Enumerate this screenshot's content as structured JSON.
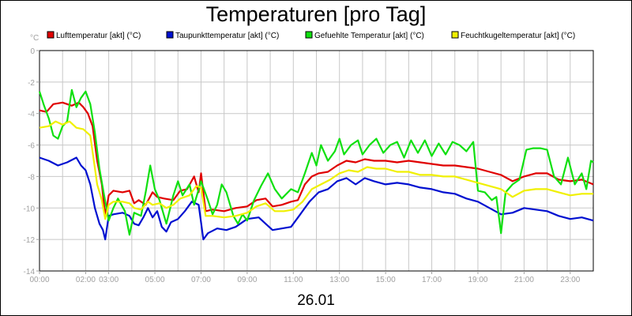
{
  "chart_data": {
    "type": "line",
    "title": "Temperaturen [pro Tag]",
    "xlabel": "26.01",
    "ylabel": "°C",
    "ylim": [
      -14,
      0
    ],
    "xlim": [
      0,
      24
    ],
    "grid": true,
    "legend_position": "top",
    "y_ticks": [
      "0",
      "-2",
      "-4",
      "-6",
      "-8",
      "-10",
      "-12",
      "-14"
    ],
    "x_ticks": [
      {
        "t": 0,
        "label": "00:00"
      },
      {
        "t": 2,
        "label": "02:00"
      },
      {
        "t": 3,
        "label": "03:00"
      },
      {
        "t": 5,
        "label": "05:00"
      },
      {
        "t": 7,
        "label": "07:00"
      },
      {
        "t": 9,
        "label": "09:00"
      },
      {
        "t": 11,
        "label": "11:00"
      },
      {
        "t": 13,
        "label": "13:00"
      },
      {
        "t": 15,
        "label": "15:00"
      },
      {
        "t": 17,
        "label": "17:00"
      },
      {
        "t": 19,
        "label": "19:00"
      },
      {
        "t": 21,
        "label": "21:00"
      },
      {
        "t": 23,
        "label": "23:00"
      }
    ],
    "series": [
      {
        "name": "Lufttemperatur [akt] (°C)",
        "color": "#e00000",
        "points": [
          [
            0,
            -3.8
          ],
          [
            0.3,
            -3.9
          ],
          [
            0.6,
            -3.4
          ],
          [
            1.0,
            -3.3
          ],
          [
            1.4,
            -3.5
          ],
          [
            1.7,
            -3.3
          ],
          [
            1.9,
            -3.6
          ],
          [
            2.1,
            -4.0
          ],
          [
            2.3,
            -4.8
          ],
          [
            2.5,
            -7.0
          ],
          [
            2.7,
            -8.5
          ],
          [
            2.85,
            -10.5
          ],
          [
            3.0,
            -9.2
          ],
          [
            3.2,
            -8.9
          ],
          [
            3.6,
            -9.0
          ],
          [
            3.9,
            -8.9
          ],
          [
            4.1,
            -9.7
          ],
          [
            4.3,
            -9.5
          ],
          [
            4.6,
            -9.8
          ],
          [
            4.9,
            -9.0
          ],
          [
            5.1,
            -9.3
          ],
          [
            5.4,
            -9.4
          ],
          [
            5.8,
            -9.5
          ],
          [
            6.1,
            -8.9
          ],
          [
            6.4,
            -8.8
          ],
          [
            6.7,
            -8.0
          ],
          [
            6.9,
            -9.0
          ],
          [
            7.0,
            -7.8
          ],
          [
            7.2,
            -10.2
          ],
          [
            7.5,
            -10.1
          ],
          [
            8.0,
            -10.2
          ],
          [
            8.5,
            -10.0
          ],
          [
            9.0,
            -9.9
          ],
          [
            9.4,
            -9.5
          ],
          [
            9.8,
            -9.4
          ],
          [
            10.1,
            -9.9
          ],
          [
            10.5,
            -9.8
          ],
          [
            10.9,
            -9.6
          ],
          [
            11.2,
            -9.5
          ],
          [
            11.5,
            -8.5
          ],
          [
            11.8,
            -8.0
          ],
          [
            12.1,
            -7.8
          ],
          [
            12.5,
            -7.7
          ],
          [
            12.9,
            -7.3
          ],
          [
            13.3,
            -7.0
          ],
          [
            13.7,
            -7.1
          ],
          [
            14.1,
            -6.9
          ],
          [
            14.5,
            -7.0
          ],
          [
            15.0,
            -7.0
          ],
          [
            15.5,
            -7.1
          ],
          [
            16.0,
            -7.0
          ],
          [
            16.5,
            -7.1
          ],
          [
            17.0,
            -7.2
          ],
          [
            17.5,
            -7.3
          ],
          [
            18.0,
            -7.3
          ],
          [
            18.5,
            -7.4
          ],
          [
            19.0,
            -7.5
          ],
          [
            19.5,
            -7.7
          ],
          [
            20.0,
            -7.9
          ],
          [
            20.5,
            -8.3
          ],
          [
            21.0,
            -8.0
          ],
          [
            21.5,
            -7.8
          ],
          [
            22.0,
            -7.8
          ],
          [
            22.5,
            -8.2
          ],
          [
            23.0,
            -8.3
          ],
          [
            23.5,
            -8.2
          ],
          [
            24.0,
            -8.5
          ]
        ]
      },
      {
        "name": "Taupunkttemperatur [akt] (°C)",
        "color": "#0010d0",
        "points": [
          [
            0,
            -6.8
          ],
          [
            0.4,
            -7.0
          ],
          [
            0.8,
            -7.3
          ],
          [
            1.2,
            -7.1
          ],
          [
            1.6,
            -6.8
          ],
          [
            1.8,
            -7.3
          ],
          [
            2.0,
            -7.6
          ],
          [
            2.2,
            -8.5
          ],
          [
            2.4,
            -10.0
          ],
          [
            2.6,
            -11.0
          ],
          [
            2.75,
            -11.4
          ],
          [
            2.85,
            -12.0
          ],
          [
            3.0,
            -10.5
          ],
          [
            3.2,
            -10.4
          ],
          [
            3.6,
            -10.3
          ],
          [
            3.9,
            -10.5
          ],
          [
            4.1,
            -11.0
          ],
          [
            4.3,
            -11.1
          ],
          [
            4.5,
            -10.6
          ],
          [
            4.7,
            -10.0
          ],
          [
            4.9,
            -10.6
          ],
          [
            5.1,
            -10.2
          ],
          [
            5.3,
            -11.2
          ],
          [
            5.5,
            -11.5
          ],
          [
            5.7,
            -10.9
          ],
          [
            6.0,
            -10.7
          ],
          [
            6.3,
            -10.2
          ],
          [
            6.6,
            -9.6
          ],
          [
            6.9,
            -9.8
          ],
          [
            7.1,
            -12.0
          ],
          [
            7.3,
            -11.6
          ],
          [
            7.7,
            -11.3
          ],
          [
            8.1,
            -11.4
          ],
          [
            8.5,
            -11.2
          ],
          [
            9.0,
            -10.7
          ],
          [
            9.5,
            -10.6
          ],
          [
            9.8,
            -11.0
          ],
          [
            10.1,
            -11.4
          ],
          [
            10.5,
            -11.3
          ],
          [
            10.9,
            -11.2
          ],
          [
            11.3,
            -10.4
          ],
          [
            11.7,
            -9.6
          ],
          [
            12.1,
            -9.0
          ],
          [
            12.5,
            -8.8
          ],
          [
            12.9,
            -8.3
          ],
          [
            13.3,
            -8.1
          ],
          [
            13.7,
            -8.5
          ],
          [
            14.1,
            -8.1
          ],
          [
            14.5,
            -8.3
          ],
          [
            15.0,
            -8.5
          ],
          [
            15.5,
            -8.4
          ],
          [
            16.0,
            -8.5
          ],
          [
            16.5,
            -8.7
          ],
          [
            17.0,
            -8.8
          ],
          [
            17.5,
            -9.0
          ],
          [
            18.0,
            -9.1
          ],
          [
            18.5,
            -9.4
          ],
          [
            19.0,
            -9.6
          ],
          [
            19.5,
            -10.0
          ],
          [
            20.0,
            -10.4
          ],
          [
            20.5,
            -10.3
          ],
          [
            21.0,
            -10.0
          ],
          [
            21.5,
            -10.1
          ],
          [
            22.0,
            -10.2
          ],
          [
            22.5,
            -10.5
          ],
          [
            23.0,
            -10.7
          ],
          [
            23.5,
            -10.6
          ],
          [
            24.0,
            -10.8
          ]
        ]
      },
      {
        "name": "Gefuehlte Temperatur [akt] (°C)",
        "color": "#10e010",
        "points": [
          [
            0,
            -2.6
          ],
          [
            0.2,
            -3.5
          ],
          [
            0.4,
            -4.3
          ],
          [
            0.6,
            -5.4
          ],
          [
            0.8,
            -5.6
          ],
          [
            1.0,
            -4.8
          ],
          [
            1.2,
            -4.5
          ],
          [
            1.4,
            -2.5
          ],
          [
            1.6,
            -3.6
          ],
          [
            1.8,
            -3.0
          ],
          [
            2.0,
            -2.6
          ],
          [
            2.2,
            -3.4
          ],
          [
            2.4,
            -5.2
          ],
          [
            2.6,
            -7.5
          ],
          [
            2.8,
            -9.2
          ],
          [
            3.0,
            -10.8
          ],
          [
            3.2,
            -10.0
          ],
          [
            3.4,
            -9.4
          ],
          [
            3.7,
            -10.2
          ],
          [
            3.9,
            -11.7
          ],
          [
            4.1,
            -10.3
          ],
          [
            4.4,
            -10.5
          ],
          [
            4.6,
            -9.0
          ],
          [
            4.8,
            -7.3
          ],
          [
            5.0,
            -8.8
          ],
          [
            5.2,
            -9.5
          ],
          [
            5.5,
            -11.0
          ],
          [
            5.8,
            -9.2
          ],
          [
            6.0,
            -8.3
          ],
          [
            6.2,
            -9.2
          ],
          [
            6.5,
            -8.5
          ],
          [
            6.7,
            -9.8
          ],
          [
            7.0,
            -8.3
          ],
          [
            7.3,
            -9.5
          ],
          [
            7.5,
            -10.4
          ],
          [
            7.7,
            -9.8
          ],
          [
            7.9,
            -8.5
          ],
          [
            8.1,
            -9.0
          ],
          [
            8.4,
            -10.5
          ],
          [
            8.6,
            -11.0
          ],
          [
            8.8,
            -10.4
          ],
          [
            9.0,
            -10.8
          ],
          [
            9.3,
            -9.5
          ],
          [
            9.6,
            -8.6
          ],
          [
            9.9,
            -7.8
          ],
          [
            10.2,
            -8.8
          ],
          [
            10.5,
            -9.4
          ],
          [
            10.9,
            -8.8
          ],
          [
            11.2,
            -9.0
          ],
          [
            11.5,
            -7.8
          ],
          [
            11.8,
            -6.5
          ],
          [
            12.0,
            -7.3
          ],
          [
            12.2,
            -6.0
          ],
          [
            12.5,
            -7.0
          ],
          [
            12.8,
            -6.4
          ],
          [
            13.0,
            -5.6
          ],
          [
            13.2,
            -6.6
          ],
          [
            13.5,
            -6.0
          ],
          [
            13.8,
            -5.7
          ],
          [
            14.0,
            -6.6
          ],
          [
            14.3,
            -6.0
          ],
          [
            14.6,
            -5.6
          ],
          [
            14.9,
            -6.5
          ],
          [
            15.2,
            -6.0
          ],
          [
            15.5,
            -5.8
          ],
          [
            15.8,
            -6.8
          ],
          [
            16.1,
            -5.7
          ],
          [
            16.4,
            -6.5
          ],
          [
            16.7,
            -5.7
          ],
          [
            17.0,
            -6.7
          ],
          [
            17.3,
            -5.9
          ],
          [
            17.6,
            -6.6
          ],
          [
            17.9,
            -5.8
          ],
          [
            18.2,
            -6.0
          ],
          [
            18.5,
            -6.4
          ],
          [
            18.8,
            -5.8
          ],
          [
            19.0,
            -8.9
          ],
          [
            19.3,
            -9.0
          ],
          [
            19.6,
            -9.5
          ],
          [
            19.8,
            -9.3
          ],
          [
            20.0,
            -11.6
          ],
          [
            20.2,
            -9.0
          ],
          [
            20.5,
            -8.5
          ],
          [
            20.8,
            -8.2
          ],
          [
            21.1,
            -6.3
          ],
          [
            21.4,
            -6.2
          ],
          [
            21.7,
            -6.2
          ],
          [
            22.0,
            -6.3
          ],
          [
            22.3,
            -8.0
          ],
          [
            22.6,
            -8.5
          ],
          [
            22.9,
            -6.8
          ],
          [
            23.2,
            -8.5
          ],
          [
            23.5,
            -7.8
          ],
          [
            23.7,
            -8.8
          ],
          [
            23.9,
            -7.0
          ],
          [
            24.0,
            -7.1
          ]
        ]
      },
      {
        "name": "Feuchtkugeltemperatur [akt] (°C)",
        "color": "#f0f000",
        "points": [
          [
            0,
            -4.9
          ],
          [
            0.4,
            -4.8
          ],
          [
            0.7,
            -4.5
          ],
          [
            1.0,
            -4.7
          ],
          [
            1.3,
            -4.5
          ],
          [
            1.6,
            -4.9
          ],
          [
            1.9,
            -5.0
          ],
          [
            2.2,
            -5.4
          ],
          [
            2.5,
            -8.5
          ],
          [
            2.7,
            -9.5
          ],
          [
            2.85,
            -10.7
          ],
          [
            3.0,
            -9.8
          ],
          [
            3.2,
            -9.6
          ],
          [
            3.6,
            -9.6
          ],
          [
            3.9,
            -9.7
          ],
          [
            4.1,
            -10.0
          ],
          [
            4.4,
            -10.1
          ],
          [
            4.7,
            -9.6
          ],
          [
            4.9,
            -9.8
          ],
          [
            5.2,
            -9.7
          ],
          [
            5.5,
            -10.0
          ],
          [
            5.8,
            -9.8
          ],
          [
            6.1,
            -9.4
          ],
          [
            6.5,
            -9.2
          ],
          [
            6.8,
            -8.6
          ],
          [
            7.0,
            -8.7
          ],
          [
            7.2,
            -10.5
          ],
          [
            7.5,
            -10.5
          ],
          [
            8.0,
            -10.6
          ],
          [
            8.5,
            -10.5
          ],
          [
            9.0,
            -10.3
          ],
          [
            9.4,
            -9.9
          ],
          [
            9.8,
            -9.7
          ],
          [
            10.2,
            -10.2
          ],
          [
            10.6,
            -10.2
          ],
          [
            11.0,
            -10.1
          ],
          [
            11.4,
            -9.6
          ],
          [
            11.8,
            -8.8
          ],
          [
            12.2,
            -8.5
          ],
          [
            12.6,
            -8.2
          ],
          [
            13.0,
            -7.8
          ],
          [
            13.4,
            -7.6
          ],
          [
            13.8,
            -7.7
          ],
          [
            14.2,
            -7.4
          ],
          [
            14.6,
            -7.5
          ],
          [
            15.0,
            -7.5
          ],
          [
            15.5,
            -7.7
          ],
          [
            16.0,
            -7.7
          ],
          [
            16.5,
            -7.9
          ],
          [
            17.0,
            -7.9
          ],
          [
            17.5,
            -8.0
          ],
          [
            18.0,
            -8.0
          ],
          [
            18.5,
            -8.2
          ],
          [
            19.0,
            -8.4
          ],
          [
            19.5,
            -8.6
          ],
          [
            20.0,
            -8.8
          ],
          [
            20.5,
            -9.3
          ],
          [
            21.0,
            -8.9
          ],
          [
            21.5,
            -8.8
          ],
          [
            22.0,
            -8.8
          ],
          [
            22.5,
            -9.0
          ],
          [
            23.0,
            -9.2
          ],
          [
            23.5,
            -9.1
          ],
          [
            24.0,
            -9.1
          ]
        ]
      }
    ]
  }
}
